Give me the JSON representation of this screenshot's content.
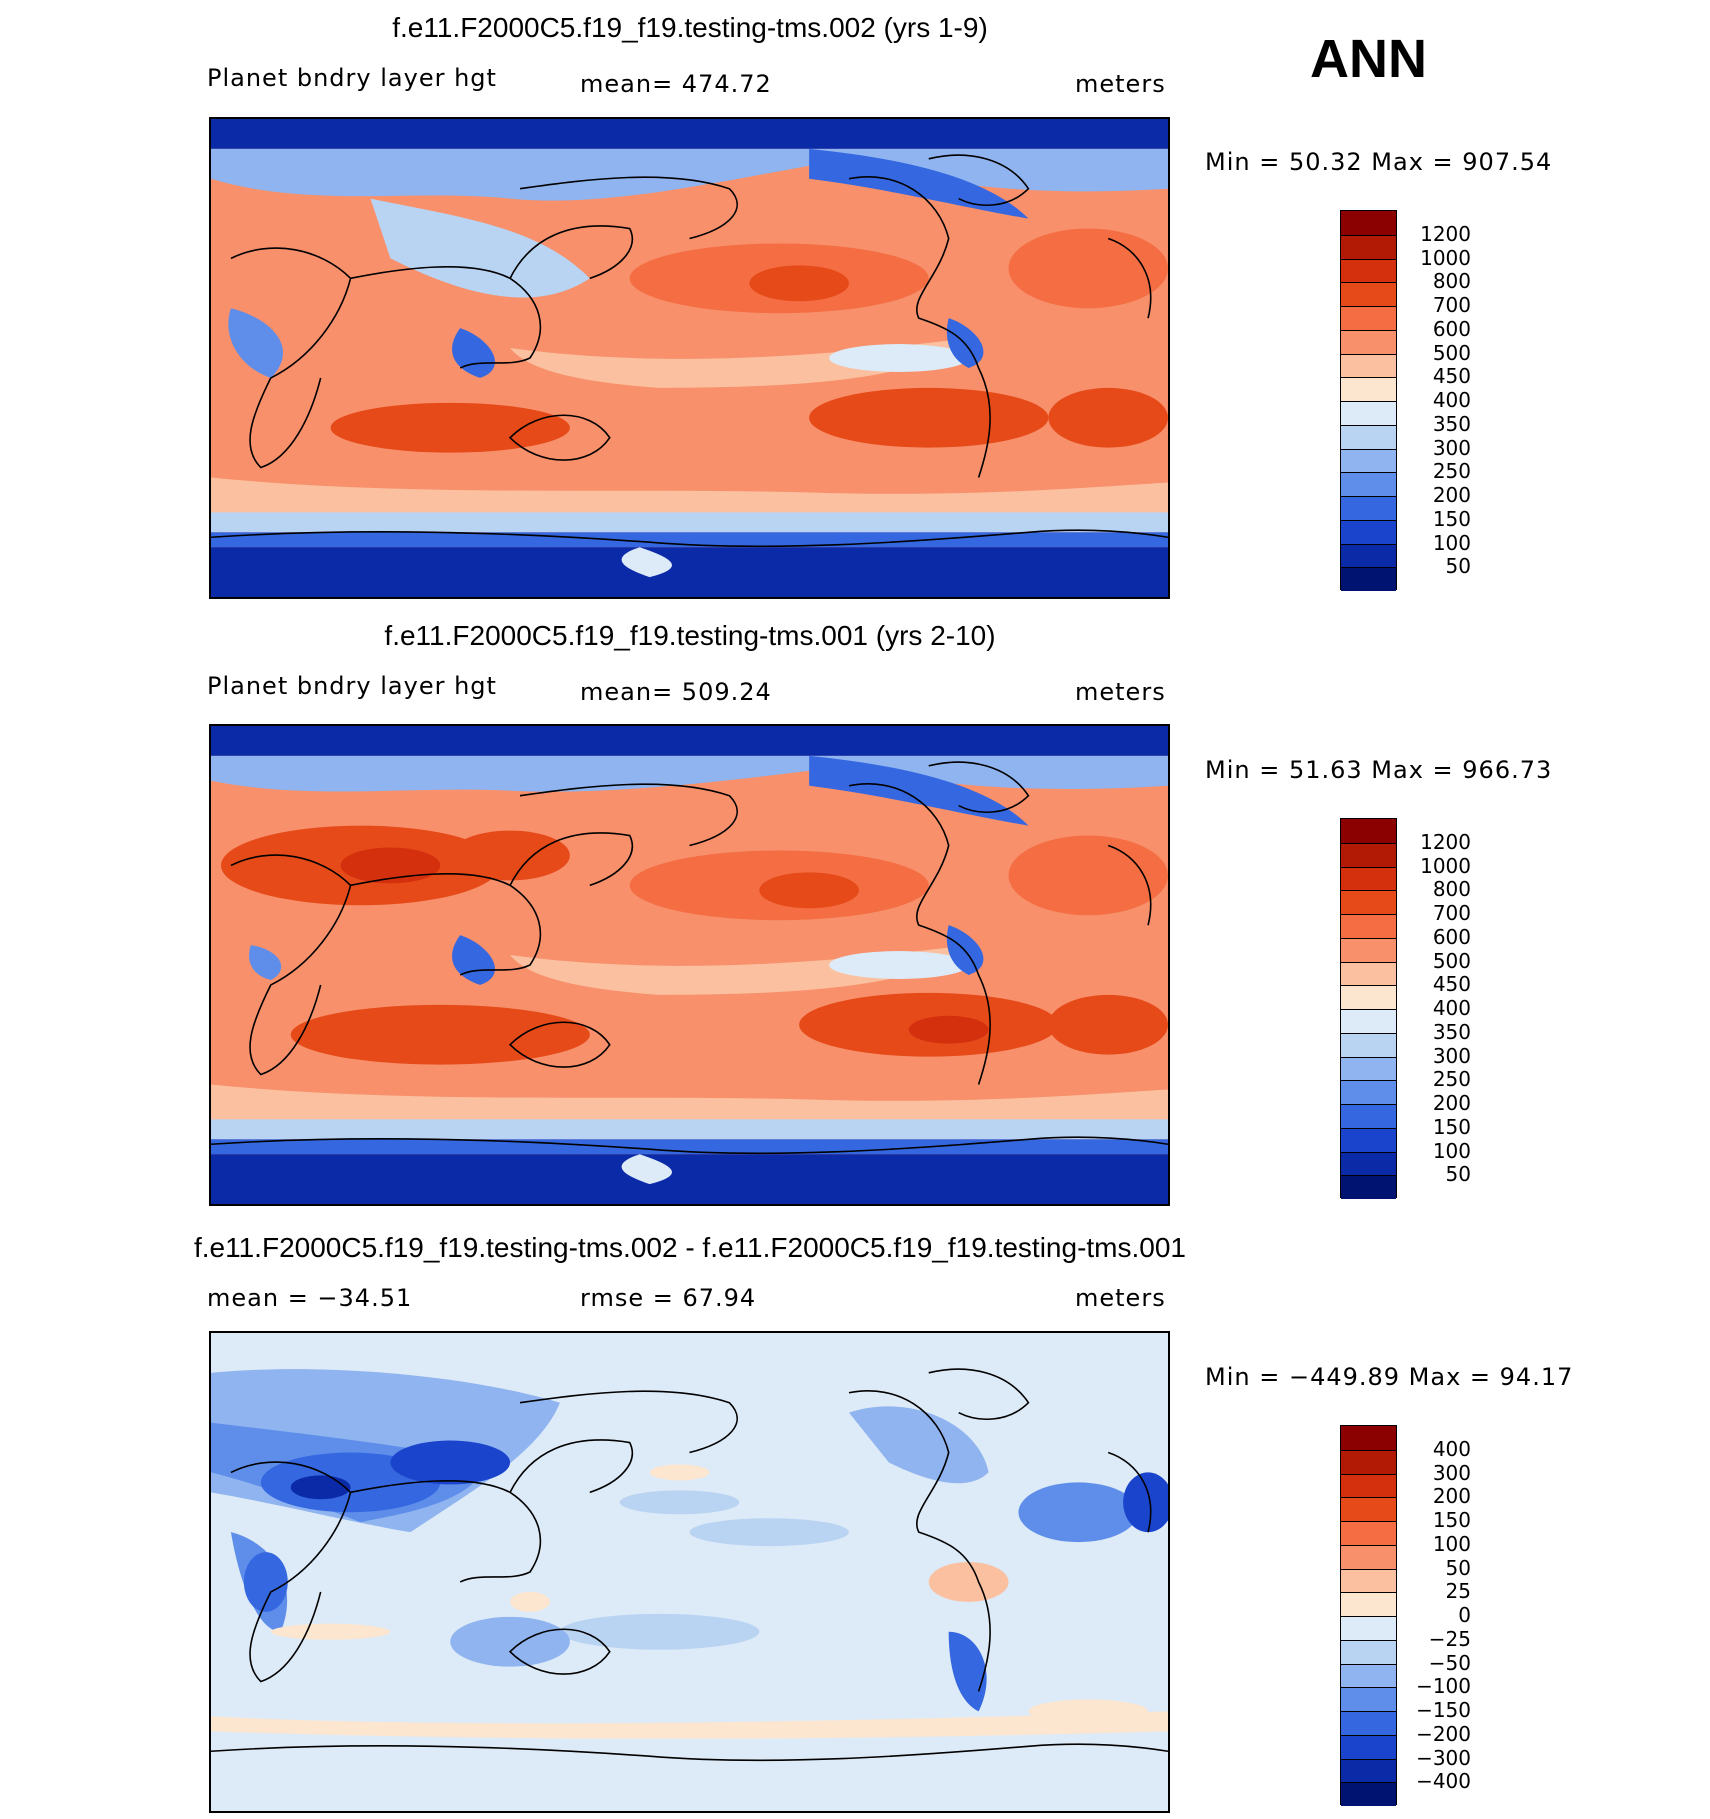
{
  "season": "ANN",
  "panels": [
    {
      "id": "p1",
      "title": "f.e11.F2000C5.f19_f19.testing-tms.002 (yrs 1-9)",
      "left_label": "Planet bndry layer hgt",
      "center_label": "mean= 474.72",
      "right_label": "meters",
      "minmax": "Min =   50.32 Max = 907.54",
      "colorbar_labels": [
        "1200",
        "1000",
        "800",
        "700",
        "600",
        "500",
        "450",
        "400",
        "350",
        "300",
        "250",
        "200",
        "150",
        "100",
        "50"
      ],
      "colorbar_colors": [
        "#8b0000",
        "#b31a06",
        "#d4300e",
        "#e64a19",
        "#f46d43",
        "#f7906b",
        "#fbc0a0",
        "#fde6cf",
        "#ddeaf7",
        "#b9d3f2",
        "#8fb4ef",
        "#5e8eea",
        "#3568e0",
        "#1a44cc",
        "#0b2aa8",
        "#001370"
      ]
    },
    {
      "id": "p2",
      "title": "f.e11.F2000C5.f19_f19.testing-tms.001 (yrs 2-10)",
      "left_label": "Planet bndry layer hgt",
      "center_label": "mean= 509.24",
      "right_label": "meters",
      "minmax": "Min =   51.63 Max = 966.73",
      "colorbar_labels": [
        "1200",
        "1000",
        "800",
        "700",
        "600",
        "500",
        "450",
        "400",
        "350",
        "300",
        "250",
        "200",
        "150",
        "100",
        "50"
      ],
      "colorbar_colors": [
        "#8b0000",
        "#b31a06",
        "#d4300e",
        "#e64a19",
        "#f46d43",
        "#f7906b",
        "#fbc0a0",
        "#fde6cf",
        "#ddeaf7",
        "#b9d3f2",
        "#8fb4ef",
        "#5e8eea",
        "#3568e0",
        "#1a44cc",
        "#0b2aa8",
        "#001370"
      ]
    },
    {
      "id": "p3",
      "title": "f.e11.F2000C5.f19_f19.testing-tms.002 - f.e11.F2000C5.f19_f19.testing-tms.001",
      "left_label": "mean = −34.51",
      "center_label": "rmse =   67.94",
      "right_label": "meters",
      "minmax": "Min = −449.89 Max =   94.17",
      "colorbar_labels": [
        "400",
        "300",
        "200",
        "150",
        "100",
        "50",
        "25",
        "0",
        "−25",
        "−50",
        "−100",
        "−150",
        "−200",
        "−300",
        "−400"
      ],
      "colorbar_colors": [
        "#8b0000",
        "#b31a06",
        "#d4300e",
        "#e64a19",
        "#f46d43",
        "#f7906b",
        "#fbc0a0",
        "#fde6cf",
        "#ddeaf7",
        "#b9d3f2",
        "#8fb4ef",
        "#5e8eea",
        "#3568e0",
        "#1a44cc",
        "#0b2aa8",
        "#001370"
      ]
    }
  ]
}
